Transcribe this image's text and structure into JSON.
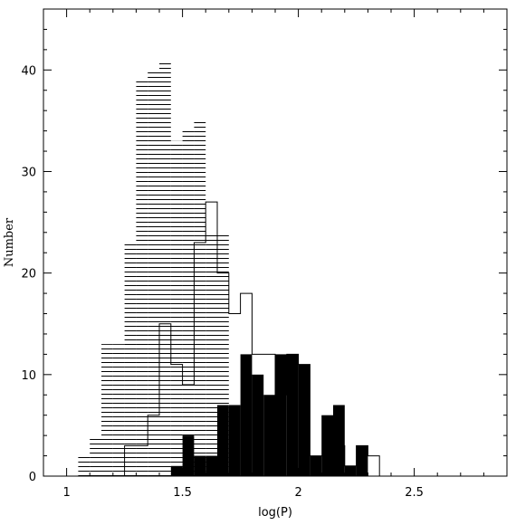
{
  "chart_data": {
    "type": "histogram",
    "xlabel": "log(P)",
    "ylabel": "Number",
    "xlim": [
      0.9,
      2.9
    ],
    "ylim": [
      0,
      46
    ],
    "xticks": [
      1,
      1.5,
      2,
      2.5
    ],
    "xtick_labels": [
      "1",
      "1.5",
      "2",
      "2.5"
    ],
    "yticks": [
      0,
      10,
      20,
      30,
      40
    ],
    "ytick_labels": [
      "0",
      "10",
      "20",
      "30",
      "40"
    ],
    "grid": false,
    "bin_width": 0.05,
    "series": [
      {
        "style": "horizontal-hatched",
        "bin_edges": [
          1.05,
          1.1,
          1.15,
          1.2,
          1.25,
          1.3,
          1.35,
          1.4,
          1.45,
          1.5,
          1.55,
          1.6,
          1.65,
          1.7
        ],
        "counts": [
          2,
          4,
          13,
          13,
          23,
          39,
          40,
          41,
          33,
          34,
          35,
          24,
          24
        ]
      },
      {
        "style": "open-outline",
        "bin_edges": [
          1.25,
          1.3,
          1.35,
          1.4,
          1.45,
          1.5,
          1.55,
          1.6,
          1.65,
          1.7,
          1.75,
          1.8,
          1.85,
          1.9,
          1.95,
          2.0,
          2.05,
          2.1,
          2.15,
          2.2,
          2.25,
          2.3,
          2.35
        ],
        "counts": [
          3,
          3,
          6,
          15,
          11,
          9,
          23,
          27,
          20,
          16,
          18,
          12,
          12,
          8,
          12,
          11,
          2,
          2,
          3,
          1,
          3,
          2
        ]
      },
      {
        "style": "solid-filled",
        "bin_edges": [
          1.45,
          1.5,
          1.55,
          1.6,
          1.65,
          1.7,
          1.75,
          1.8,
          1.85,
          1.9,
          1.95,
          2.0,
          2.05,
          2.1,
          2.15,
          2.2,
          2.25,
          2.3
        ],
        "counts": [
          1,
          4,
          2,
          2,
          7,
          7,
          12,
          10,
          8,
          12,
          12,
          11,
          2,
          6,
          7,
          1,
          3
        ]
      }
    ]
  }
}
